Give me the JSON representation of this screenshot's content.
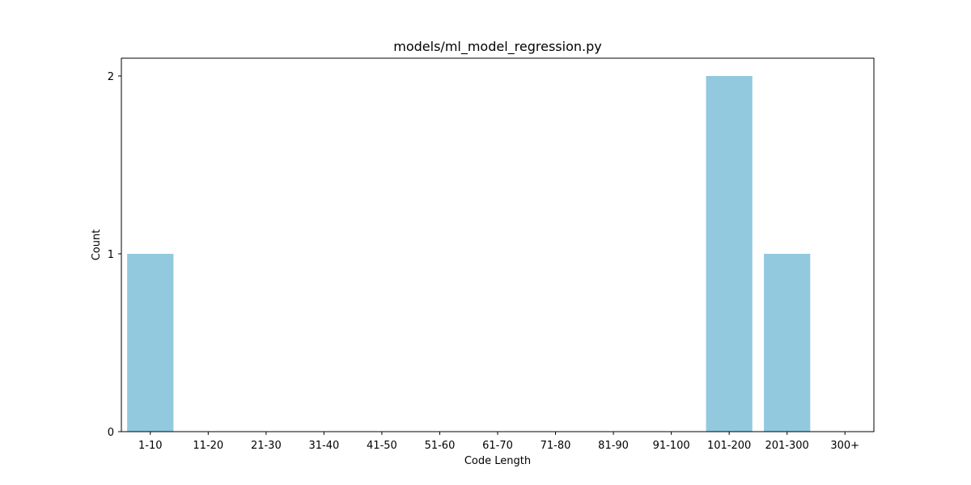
{
  "chart_data": {
    "type": "bar",
    "title": "models/ml_model_regression.py",
    "xlabel": "Code Length",
    "ylabel": "Count",
    "categories": [
      "1-10",
      "11-20",
      "21-30",
      "31-40",
      "41-50",
      "51-60",
      "61-70",
      "71-80",
      "81-90",
      "91-100",
      "101-200",
      "201-300",
      "300+"
    ],
    "values": [
      1,
      0,
      0,
      0,
      0,
      0,
      0,
      0,
      0,
      0,
      2,
      1,
      0
    ],
    "ylim": [
      0,
      2.1
    ],
    "yticks": [
      "0",
      "1",
      "2"
    ],
    "bar_color": "#92c9df",
    "grid": false,
    "legend": "none"
  }
}
